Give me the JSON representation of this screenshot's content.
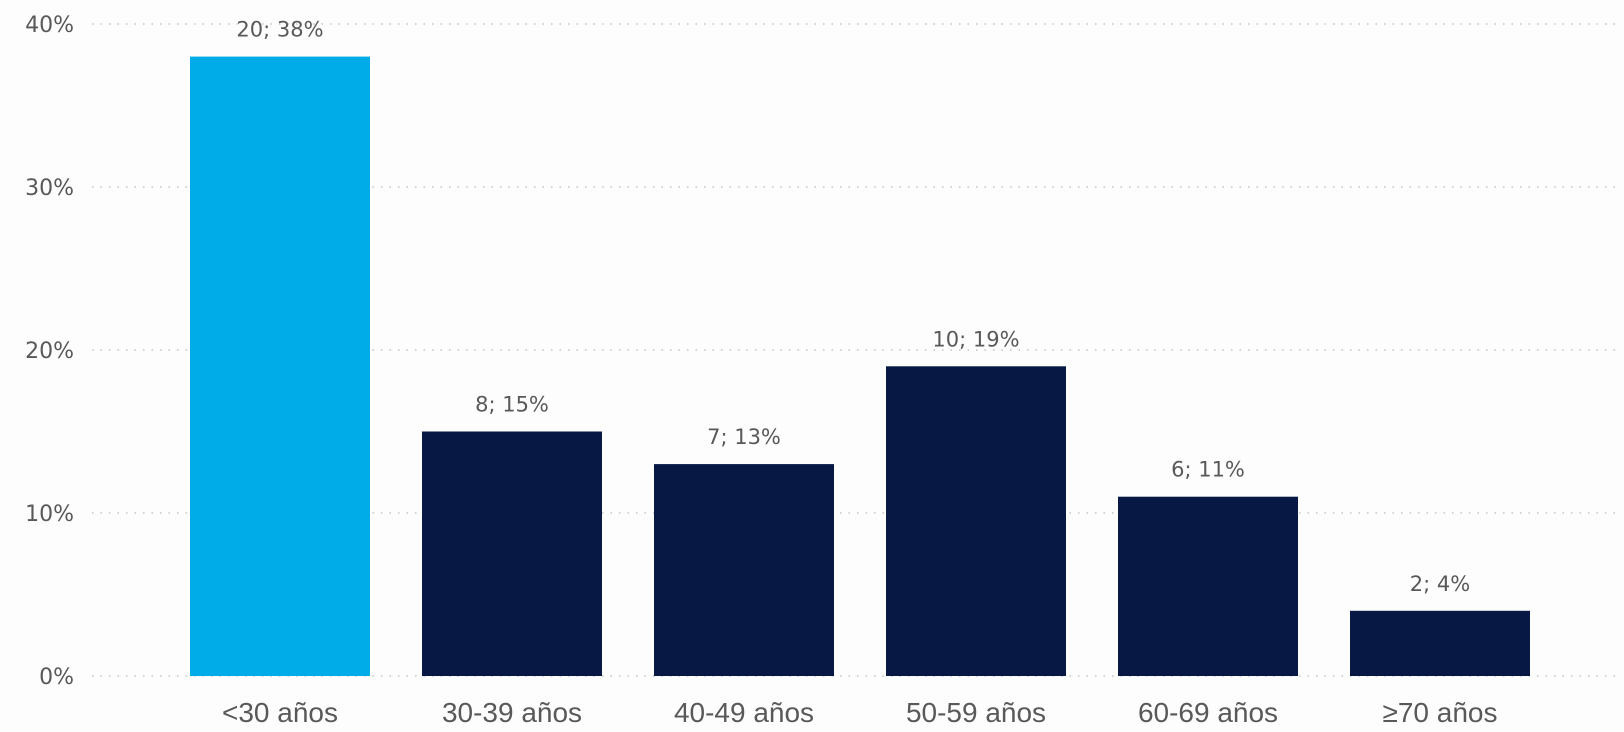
{
  "chart_data": {
    "type": "bar",
    "categories": [
      "<30 años",
      "30-39 años",
      "40-49 años",
      "50-59 años",
      "60-69 años",
      "≥70 años"
    ],
    "counts": [
      20,
      8,
      7,
      10,
      6,
      2
    ],
    "values": [
      38,
      15,
      13,
      19,
      11,
      4
    ],
    "data_labels": [
      "20; 38%",
      "8; 15%",
      "7; 13%",
      "10; 19%",
      "6; 11%",
      "2; 4%"
    ],
    "highlight_index": 0,
    "colors": {
      "highlight": "#00ace8",
      "default": "#071845"
    },
    "yticks": [
      0,
      10,
      20,
      30,
      40
    ],
    "ytick_labels": [
      "0%",
      "10%",
      "20%",
      "30%",
      "40%"
    ],
    "ylim": [
      0,
      40
    ],
    "grid": true,
    "legend": "none"
  }
}
